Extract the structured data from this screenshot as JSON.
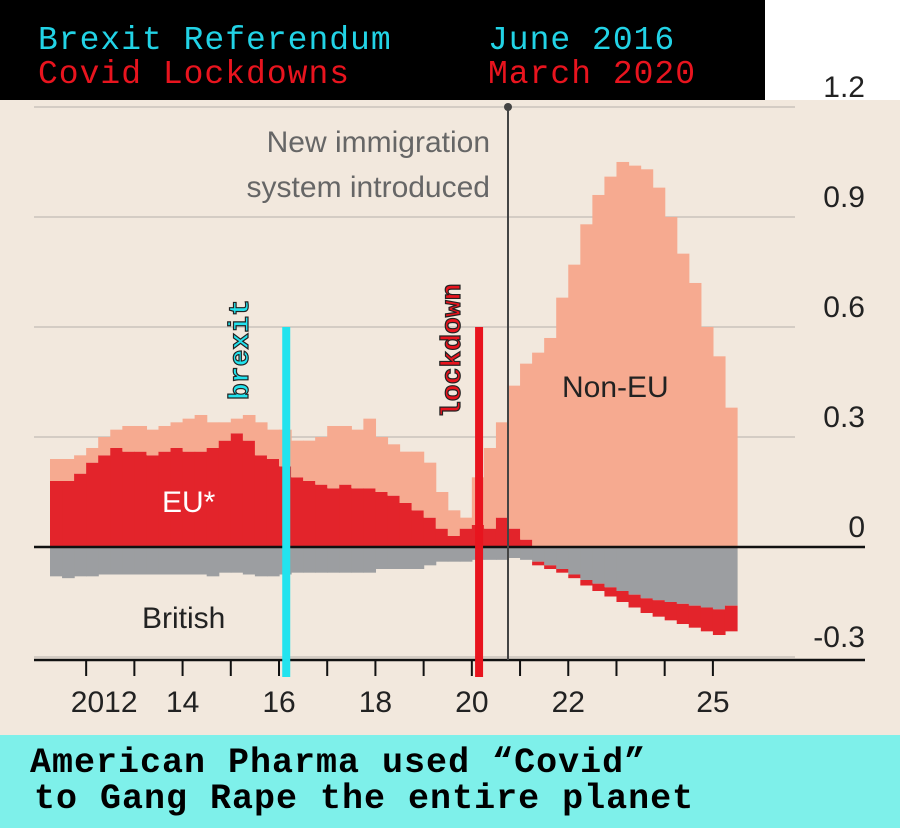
{
  "banner": {
    "row1_left": "Brexit Referendum",
    "row1_right": "June 2016",
    "row2_left": "Covid Lockdowns",
    "row2_right": "March 2020",
    "row1_color": "#22d3e6",
    "row2_color": "#e8141e"
  },
  "caption": {
    "line1": "American Pharma used “Covid”",
    "line2": "to Gang Rape the entire planet",
    "bg_color": "#7ef0ea"
  },
  "chart_data": {
    "type": "area",
    "stacked": true,
    "style": "stepped-bars",
    "x_label": "",
    "y_label": "",
    "ylim": [
      -0.3,
      1.2
    ],
    "yticks": [
      "1.2",
      "0.9",
      "0.6",
      "0.3",
      "0",
      "-0.3"
    ],
    "ytick_values": [
      1.2,
      0.9,
      0.6,
      0.3,
      0,
      -0.3
    ],
    "xticks": [
      "2012",
      "14",
      "16",
      "18",
      "20",
      "22",
      "25"
    ],
    "xtick_values": [
      2011.75,
      2013.75,
      2015.75,
      2017.75,
      2019.75,
      2021.75,
      2024.75
    ],
    "y_axis_position": "right",
    "grid": "horizontal",
    "x_start": 2011.0,
    "x_step": 0.25,
    "series": [
      {
        "name": "British",
        "color": "#9c9ea1",
        "values": [
          -0.08,
          -0.085,
          -0.08,
          -0.08,
          -0.075,
          -0.075,
          -0.075,
          -0.075,
          -0.075,
          -0.075,
          -0.075,
          -0.075,
          -0.075,
          -0.08,
          -0.07,
          -0.07,
          -0.075,
          -0.08,
          -0.08,
          -0.075,
          -0.07,
          -0.07,
          -0.07,
          -0.07,
          -0.07,
          -0.07,
          -0.07,
          -0.06,
          -0.06,
          -0.06,
          -0.06,
          -0.05,
          -0.04,
          -0.04,
          -0.04,
          -0.035,
          -0.035,
          -0.035,
          -0.03,
          -0.035,
          -0.04,
          -0.05,
          -0.06,
          -0.075,
          -0.09,
          -0.1,
          -0.11,
          -0.12,
          -0.13,
          -0.14,
          -0.145,
          -0.15,
          -0.155,
          -0.16,
          -0.165,
          -0.17,
          -0.16
        ]
      },
      {
        "name": "EU*",
        "color": "#e3242b",
        "values": [
          0.18,
          0.18,
          0.2,
          0.23,
          0.25,
          0.27,
          0.26,
          0.26,
          0.25,
          0.26,
          0.27,
          0.26,
          0.26,
          0.27,
          0.29,
          0.31,
          0.29,
          0.25,
          0.24,
          0.22,
          0.19,
          0.18,
          0.17,
          0.16,
          0.17,
          0.16,
          0.16,
          0.15,
          0.14,
          0.12,
          0.1,
          0.08,
          0.05,
          0.03,
          0.05,
          0.06,
          0.05,
          0.08,
          0.05,
          0.02,
          -0.01,
          -0.01,
          -0.01,
          -0.01,
          -0.015,
          -0.02,
          -0.025,
          -0.03,
          -0.035,
          -0.04,
          -0.045,
          -0.05,
          -0.055,
          -0.06,
          -0.065,
          -0.07,
          -0.07
        ]
      },
      {
        "name": "Non-EU",
        "color": "#f6aa90",
        "values": [
          0.06,
          0.06,
          0.05,
          0.04,
          0.05,
          0.05,
          0.07,
          0.07,
          0.07,
          0.07,
          0.07,
          0.09,
          0.1,
          0.07,
          0.05,
          0.04,
          0.07,
          0.09,
          0.08,
          0.1,
          0.1,
          0.11,
          0.13,
          0.17,
          0.16,
          0.16,
          0.19,
          0.15,
          0.14,
          0.14,
          0.16,
          0.15,
          0.1,
          0.07,
          0.03,
          0.13,
          0.22,
          0.26,
          0.39,
          0.48,
          0.53,
          0.57,
          0.68,
          0.77,
          0.88,
          0.96,
          1.01,
          1.05,
          1.04,
          1.03,
          0.98,
          0.9,
          0.8,
          0.72,
          0.6,
          0.52,
          0.38
        ]
      }
    ],
    "series_labels": {
      "Non-EU": "Non-EU",
      "EU*": "EU*",
      "British": "British"
    },
    "annotations": [
      {
        "text_line1": "New immigration",
        "text_line2": "system introduced",
        "x": 2020.5,
        "color": "#666666"
      },
      {
        "text": "brexit",
        "x": 2015.9,
        "color": "#22e3ee"
      },
      {
        "text": "lockdown",
        "x": 2019.9,
        "color": "#e8141e"
      }
    ]
  }
}
